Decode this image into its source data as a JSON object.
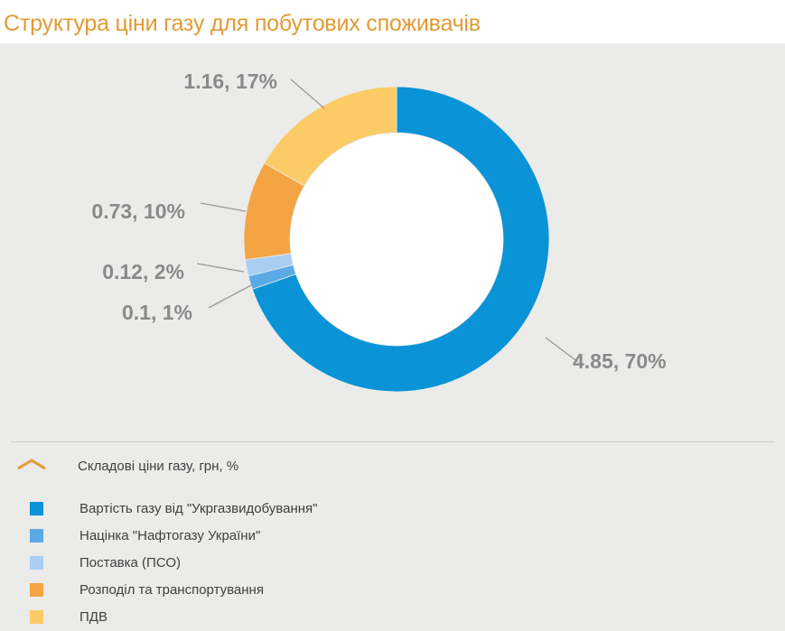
{
  "title": "Структура ціни газу для побутових споживачів",
  "legend": {
    "line_entry": "Складові ціни газу, грн, %",
    "items": [
      {
        "label": "Вартість газу від \"Укргазвидобування\"",
        "color": "#0a93d6"
      },
      {
        "label": "Націнка \"Нафтогазу України\"",
        "color": "#5aaae6"
      },
      {
        "label": "Поставка (ПСО)",
        "color": "#a9cdf3"
      },
      {
        "label": "Розподіл та транспортування",
        "color": "#f4a443"
      },
      {
        "label": "ПДВ",
        "color": "#fbcb66"
      }
    ]
  },
  "chart_data": {
    "type": "pie",
    "donut": true,
    "title": "Структура ціни газу для побутових споживачів",
    "categories": [
      "Вартість газу від \"Укргазвидобування\"",
      "Націнка \"Нафтогазу України\"",
      "Поставка (ПСО)",
      "Розподіл та транспортування",
      "ПДВ"
    ],
    "values": [
      4.85,
      0.1,
      0.12,
      0.73,
      1.16
    ],
    "percent": [
      70,
      1,
      2,
      10,
      17
    ],
    "data_labels": [
      "4.85, 70%",
      "0.1, 1%",
      "0.12, 2%",
      "0.73, 10%",
      "1.16, 17%"
    ],
    "colors": [
      "#0a93d6",
      "#5aaae6",
      "#a9cdf3",
      "#f4a443",
      "#fbcb66"
    ],
    "legend_position": "bottom"
  }
}
